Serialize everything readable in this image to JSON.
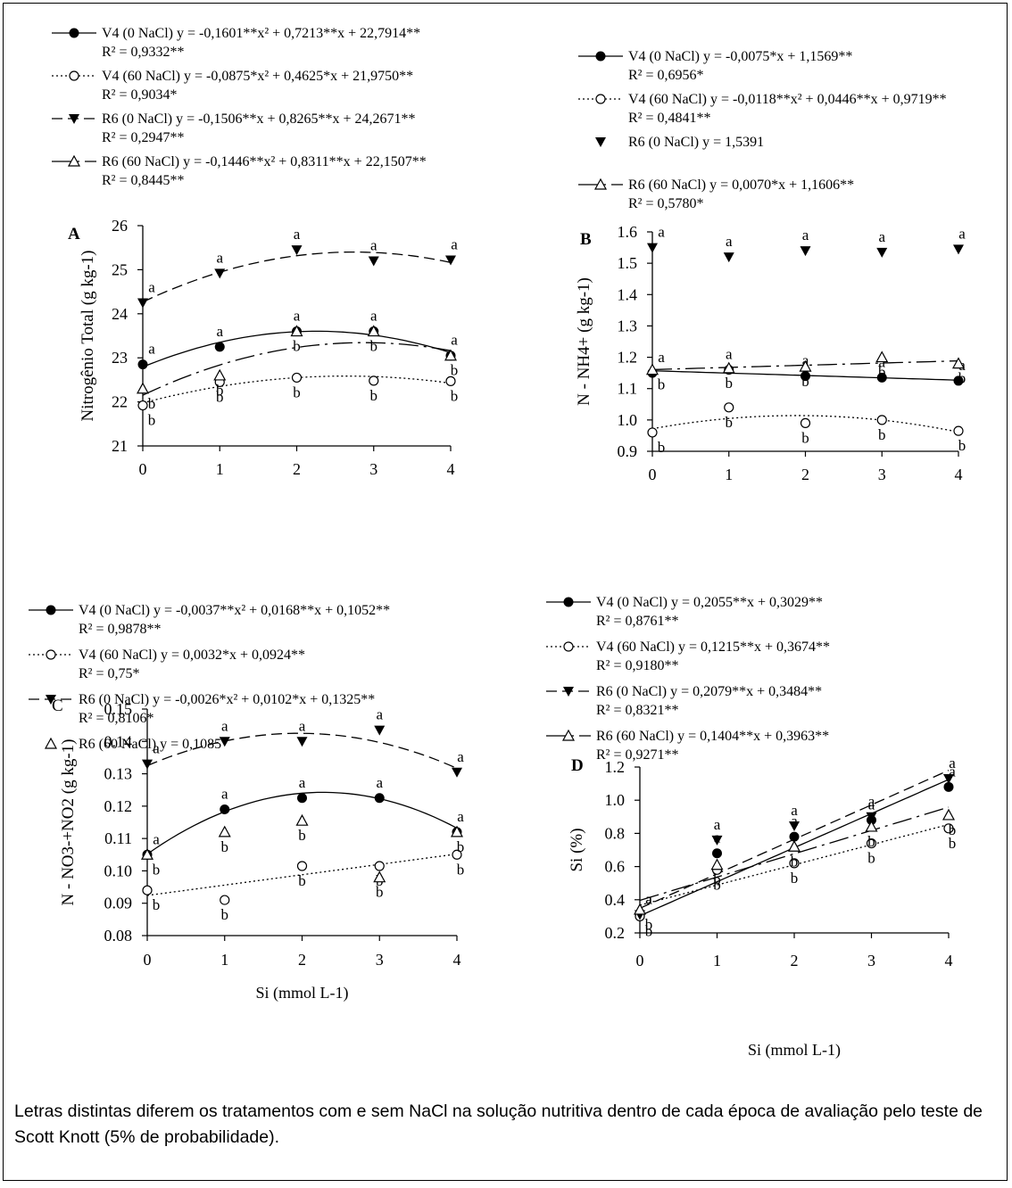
{
  "caption": "Letras distintas diferem os tratamentos com e sem NaCl na solução nutritiva dentro de cada época de avaliação pelo teste de Scott Knott (5% de probabilidade).",
  "chart_data": [
    {
      "panel": "A",
      "type": "scatter",
      "ylabel": "Nitrogênio Total (g kg-1)",
      "xlabel": "",
      "x": [
        0,
        1,
        2,
        3,
        4
      ],
      "xlim": [
        0,
        4
      ],
      "ylim": [
        21,
        26
      ],
      "yticks": [
        21,
        22,
        23,
        24,
        25,
        26
      ],
      "legend": [
        {
          "series": "V4 (0 NaCl)",
          "eq": "V4 (0 NaCl) y = -0,1601**x² + 0,7213**x + 22,7914**",
          "r2": "R² = 0,9332**"
        },
        {
          "series": "V4 (60 NaCl)",
          "eq": "V4 (60 NaCl) y = -0,0875*x² + 0,4625*x + 21,9750**",
          "r2": "R² = 0,9034*"
        },
        {
          "series": "R6 (0 NaCl)",
          "eq": "R6 (0 NaCl) y = -0,1506**x + 0,8265**x + 24,2671**",
          "r2": "R² = 0,2947**"
        },
        {
          "series": "R6 (60 NaCl)",
          "eq": "R6 (60 NaCl) y = -0,1446**x² + 0,8311**x + 22,1507**",
          "r2": "R² = 0,8445**"
        }
      ],
      "series": [
        {
          "name": "V4 (0 NaCl)",
          "values": [
            22.85,
            23.25,
            23.6,
            23.6,
            23.05
          ],
          "letters": [
            "a",
            "a",
            "a",
            "a",
            "a"
          ],
          "coef": [
            22.7914,
            0.7213,
            -0.1601
          ],
          "fit": true
        },
        {
          "name": "V4 (60 NaCl)",
          "values": [
            21.92,
            22.45,
            22.55,
            22.48,
            22.47
          ],
          "letters": [
            "b",
            "b",
            "b",
            "b",
            "b"
          ],
          "coef": [
            21.975,
            0.4625,
            -0.0875
          ],
          "fit": true
        },
        {
          "name": "R6 (0 NaCl)",
          "values": [
            24.25,
            24.92,
            25.45,
            25.2,
            25.22
          ],
          "letters": [
            "a",
            "a",
            "a",
            "a",
            "a"
          ],
          "coef": [
            24.2671,
            0.8265,
            -0.1506
          ],
          "fit": true
        },
        {
          "name": "R6 (60 NaCl)",
          "values": [
            22.3,
            22.6,
            23.6,
            23.6,
            23.05
          ],
          "letters": [
            "b",
            "b",
            "b",
            "b",
            "b"
          ],
          "coef": [
            22.1507,
            0.8311,
            -0.1446
          ],
          "fit": true
        }
      ]
    },
    {
      "panel": "B",
      "type": "scatter",
      "ylabel": "N - NH4+ (g kg-1)",
      "xlabel": "",
      "x": [
        0,
        1,
        2,
        3,
        4
      ],
      "xlim": [
        0,
        4
      ],
      "ylim": [
        0.9,
        1.6
      ],
      "yticks": [
        0.9,
        1.0,
        1.1,
        1.2,
        1.3,
        1.4,
        1.5,
        1.6
      ],
      "legend": [
        {
          "series": "V4 (0 NaCl)",
          "eq": "V4 (0 NaCl) y = -0,0075*x + 1,1569**",
          "r2": "R² = 0,6956*"
        },
        {
          "series": "V4 (60 NaCl)",
          "eq": "V4 (60 NaCl) y = -0,0118**x² + 0,0446**x + 0,9719**",
          "r2": "R² = 0,4841**"
        },
        {
          "series": "R6 (0 NaCl)",
          "eq": "R6 (0 NaCl) y = 1,5391",
          "r2": ""
        },
        {
          "series": "R6 (60 NaCl)",
          "eq": "R6 (60 NaCl) y = 0,0070*x + 1,1606**",
          "r2": "R² = 0,5780*"
        }
      ],
      "series": [
        {
          "name": "V4 (0 NaCl)",
          "values": [
            1.15,
            1.16,
            1.14,
            1.135,
            1.125
          ],
          "letters": [
            "a",
            "a",
            "a",
            "a",
            "a"
          ],
          "coef": [
            1.1569,
            -0.0075,
            0
          ],
          "fit": true
        },
        {
          "name": "V4 (60 NaCl)",
          "values": [
            0.96,
            1.04,
            0.99,
            1.0,
            0.965
          ],
          "letters": [
            "b",
            "b",
            "b",
            "b",
            "b"
          ],
          "coef": [
            0.9719,
            0.0446,
            -0.0118
          ],
          "fit": true
        },
        {
          "name": "R6 (0 NaCl)",
          "values": [
            1.55,
            1.52,
            1.54,
            1.535,
            1.545
          ],
          "letters": [
            "a",
            "a",
            "a",
            "a",
            "a"
          ],
          "coef": [
            1.5391,
            0,
            0
          ],
          "fit": false
        },
        {
          "name": "R6 (60 NaCl)",
          "values": [
            1.16,
            1.165,
            1.17,
            1.2,
            1.18
          ],
          "letters": [
            "b",
            "b",
            "b",
            "b",
            "b"
          ],
          "coef": [
            1.1606,
            0.007,
            0
          ],
          "fit": true
        }
      ]
    },
    {
      "panel": "C",
      "type": "scatter",
      "ylabel": "N - NO3-+NO2 (g kg-1)",
      "xlabel": "Si (mmol L-1)",
      "x": [
        0,
        1,
        2,
        3,
        4
      ],
      "xlim": [
        0,
        4
      ],
      "ylim": [
        0.08,
        0.15
      ],
      "yticks": [
        0.08,
        0.09,
        0.1,
        0.11,
        0.12,
        0.13,
        0.14,
        0.15
      ],
      "legend": [
        {
          "series": "V4 (0 NaCl)",
          "eq": "V4 (0 NaCl) y = -0,0037**x² + 0,0168**x + 0,1052**",
          "r2": "R² = 0,9878**"
        },
        {
          "series": "V4 (60 NaCl)",
          "eq": "V4 (60 NaCl) y = 0,0032*x + 0,0924**",
          "r2": "R² = 0,75*"
        },
        {
          "series": "R6 (0 NaCl)",
          "eq": "R6 (0 NaCl) y = -0,0026*x² + 0,0102*x + 0,1325**",
          "r2": "R² = 0,8106*"
        },
        {
          "series": "R6 (60 NaCl)",
          "eq": "R6 (60 NaCl) y = 0,1085",
          "r2": ""
        }
      ],
      "series": [
        {
          "name": "V4 (0 NaCl)",
          "values": [
            0.105,
            0.119,
            0.1225,
            0.1225,
            0.112
          ],
          "letters": [
            "a",
            "a",
            "a",
            "a",
            "a"
          ],
          "coef": [
            0.1052,
            0.0168,
            -0.0037
          ],
          "fit": true
        },
        {
          "name": "V4 (60 NaCl)",
          "values": [
            0.094,
            0.091,
            0.1015,
            0.1015,
            0.105
          ],
          "letters": [
            "b",
            "b",
            "b",
            "b",
            "b"
          ],
          "coef": [
            0.0924,
            0.0032,
            0
          ],
          "fit": true
        },
        {
          "name": "R6 (0 NaCl)",
          "values": [
            0.133,
            0.14,
            0.14,
            0.1435,
            0.1305
          ],
          "letters": [
            "a",
            "a",
            "a",
            "a",
            "a"
          ],
          "coef": [
            0.1325,
            0.0102,
            -0.0026
          ],
          "fit": true
        },
        {
          "name": "R6 (60 NaCl)",
          "values": [
            0.105,
            0.112,
            0.1155,
            0.098,
            0.112
          ],
          "letters": [
            "b",
            "b",
            "b",
            "b",
            "b"
          ],
          "coef": [
            0.1085,
            0,
            0
          ],
          "fit": false
        }
      ]
    },
    {
      "panel": "D",
      "type": "scatter",
      "ylabel": "Si (%)",
      "xlabel": "Si (mmol L-1)",
      "x": [
        0,
        1,
        2,
        3,
        4
      ],
      "xlim": [
        0,
        4
      ],
      "ylim": [
        0.2,
        1.2
      ],
      "yticks": [
        0.2,
        0.4,
        0.6,
        0.8,
        1.0,
        1.2
      ],
      "legend": [
        {
          "series": "V4 (0 NaCl)",
          "eq": "V4 (0 NaCl) y = 0,2055**x + 0,3029**",
          "r2": "R² = 0,8761**"
        },
        {
          "series": "V4 (60 NaCl)",
          "eq": "V4 (60 NaCl) y = 0,1215**x + 0,3674**",
          "r2": "R² = 0,9180**"
        },
        {
          "series": "R6 (0 NaCl)",
          "eq": "R6 (0 NaCl) y = 0,2079**x + 0,3484**",
          "r2": "R² = 0,8321**"
        },
        {
          "series": "R6 (60 NaCl)",
          "eq": "R6 (60 NaCl) y = 0,1404**x + 0,3963**",
          "r2": "R² = 0,9271**"
        }
      ],
      "series": [
        {
          "name": "V4 (0 NaCl)",
          "values": [
            0.31,
            0.68,
            0.78,
            0.88,
            1.08
          ],
          "letters": [
            "a",
            "a",
            "a",
            "a",
            "a"
          ],
          "coef": [
            0.3029,
            0.2055,
            0
          ],
          "fit": true
        },
        {
          "name": "V4 (60 NaCl)",
          "values": [
            0.3,
            0.58,
            0.62,
            0.74,
            0.83
          ],
          "letters": [
            "b",
            "b",
            "b",
            "b",
            "b"
          ],
          "coef": [
            0.3674,
            0.1215,
            0
          ],
          "fit": true
        },
        {
          "name": "R6 (0 NaCl)",
          "values": [
            0.31,
            0.76,
            0.845,
            0.9,
            1.13
          ],
          "letters": [
            "a",
            "a",
            "a",
            "a",
            "a"
          ],
          "coef": [
            0.3484,
            0.2079,
            0
          ],
          "fit": true
        },
        {
          "name": "R6 (60 NaCl)",
          "values": [
            0.34,
            0.61,
            0.72,
            0.84,
            0.91
          ],
          "letters": [
            "b",
            "b",
            "b",
            "b",
            "b"
          ],
          "coef": [
            0.3963,
            0.1404,
            0
          ],
          "fit": true
        }
      ]
    }
  ]
}
